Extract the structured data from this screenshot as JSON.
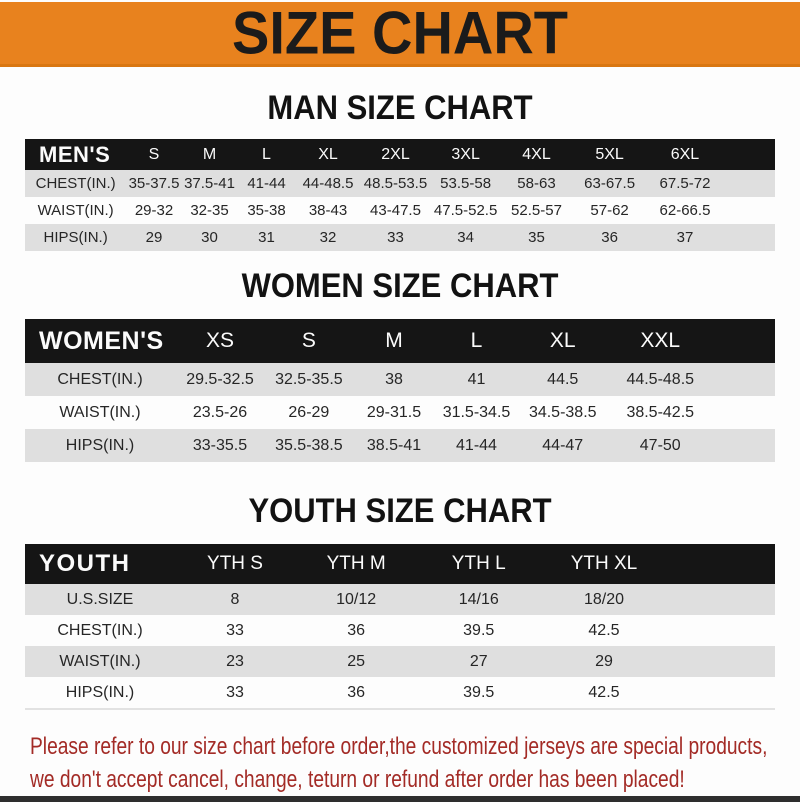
{
  "banner": {
    "title": "SIZE CHART"
  },
  "sections": [
    {
      "heading": "MAN SIZE CHART",
      "band_label": "MEN'S",
      "columns": [
        "S",
        "M",
        "L",
        "XL",
        "2XL",
        "3XL",
        "4XL",
        "5XL",
        "6XL"
      ],
      "rows": [
        {
          "label": "CHEST(IN.)",
          "values": [
            "35-37.5",
            "37.5-41",
            "41-44",
            "44-48.5",
            "48.5-53.5",
            "53.5-58",
            "58-63",
            "63-67.5",
            "67.5-72"
          ]
        },
        {
          "label": "WAIST(IN.)",
          "values": [
            "29-32",
            "32-35",
            "35-38",
            "38-43",
            "43-47.5",
            "47.5-52.5",
            "52.5-57",
            "57-62",
            "62-66.5"
          ]
        },
        {
          "label": "HIPS(IN.)",
          "values": [
            "29",
            "30",
            "31",
            "32",
            "33",
            "34",
            "35",
            "36",
            "37"
          ]
        }
      ]
    },
    {
      "heading": "WOMEN SIZE CHART",
      "band_label": "WOMEN'S",
      "columns": [
        "XS",
        "S",
        "M",
        "L",
        "XL",
        "XXL"
      ],
      "rows": [
        {
          "label": "CHEST(IN.)",
          "values": [
            "29.5-32.5",
            "32.5-35.5",
            "38",
            "41",
            "44.5",
            "44.5-48.5"
          ]
        },
        {
          "label": "WAIST(IN.)",
          "values": [
            "23.5-26",
            "26-29",
            "29-31.5",
            "31.5-34.5",
            "34.5-38.5",
            "38.5-42.5"
          ]
        },
        {
          "label": "HIPS(IN.)",
          "values": [
            "33-35.5",
            "35.5-38.5",
            "38.5-41",
            "41-44",
            "44-47",
            "47-50"
          ]
        }
      ]
    },
    {
      "heading": "YOUTH SIZE CHART",
      "band_label": "YOUTH",
      "columns": [
        "YTH S",
        "YTH M",
        "YTH L",
        "YTH XL"
      ],
      "rows": [
        {
          "label": "U.S.SIZE",
          "values": [
            "8",
            "10/12",
            "14/16",
            "18/20"
          ]
        },
        {
          "label": "CHEST(IN.)",
          "values": [
            "33",
            "36",
            "39.5",
            "42.5"
          ]
        },
        {
          "label": "WAIST(IN.)",
          "values": [
            "23",
            "25",
            "27",
            "29"
          ]
        },
        {
          "label": "HIPS(IN.)",
          "values": [
            "33",
            "36",
            "39.5",
            "42.5"
          ]
        }
      ]
    }
  ],
  "note": {
    "line1": "Please refer to our size chart before order,the customized jerseys are special products,",
    "line2": "we don't accept cancel, change, teturn or refund after order has been placed!"
  },
  "colors": {
    "banner_orange": "#E8821E",
    "band_black": "#151515",
    "row_alt_gray": "#DFDFDF",
    "note_red": "#A32B26"
  }
}
